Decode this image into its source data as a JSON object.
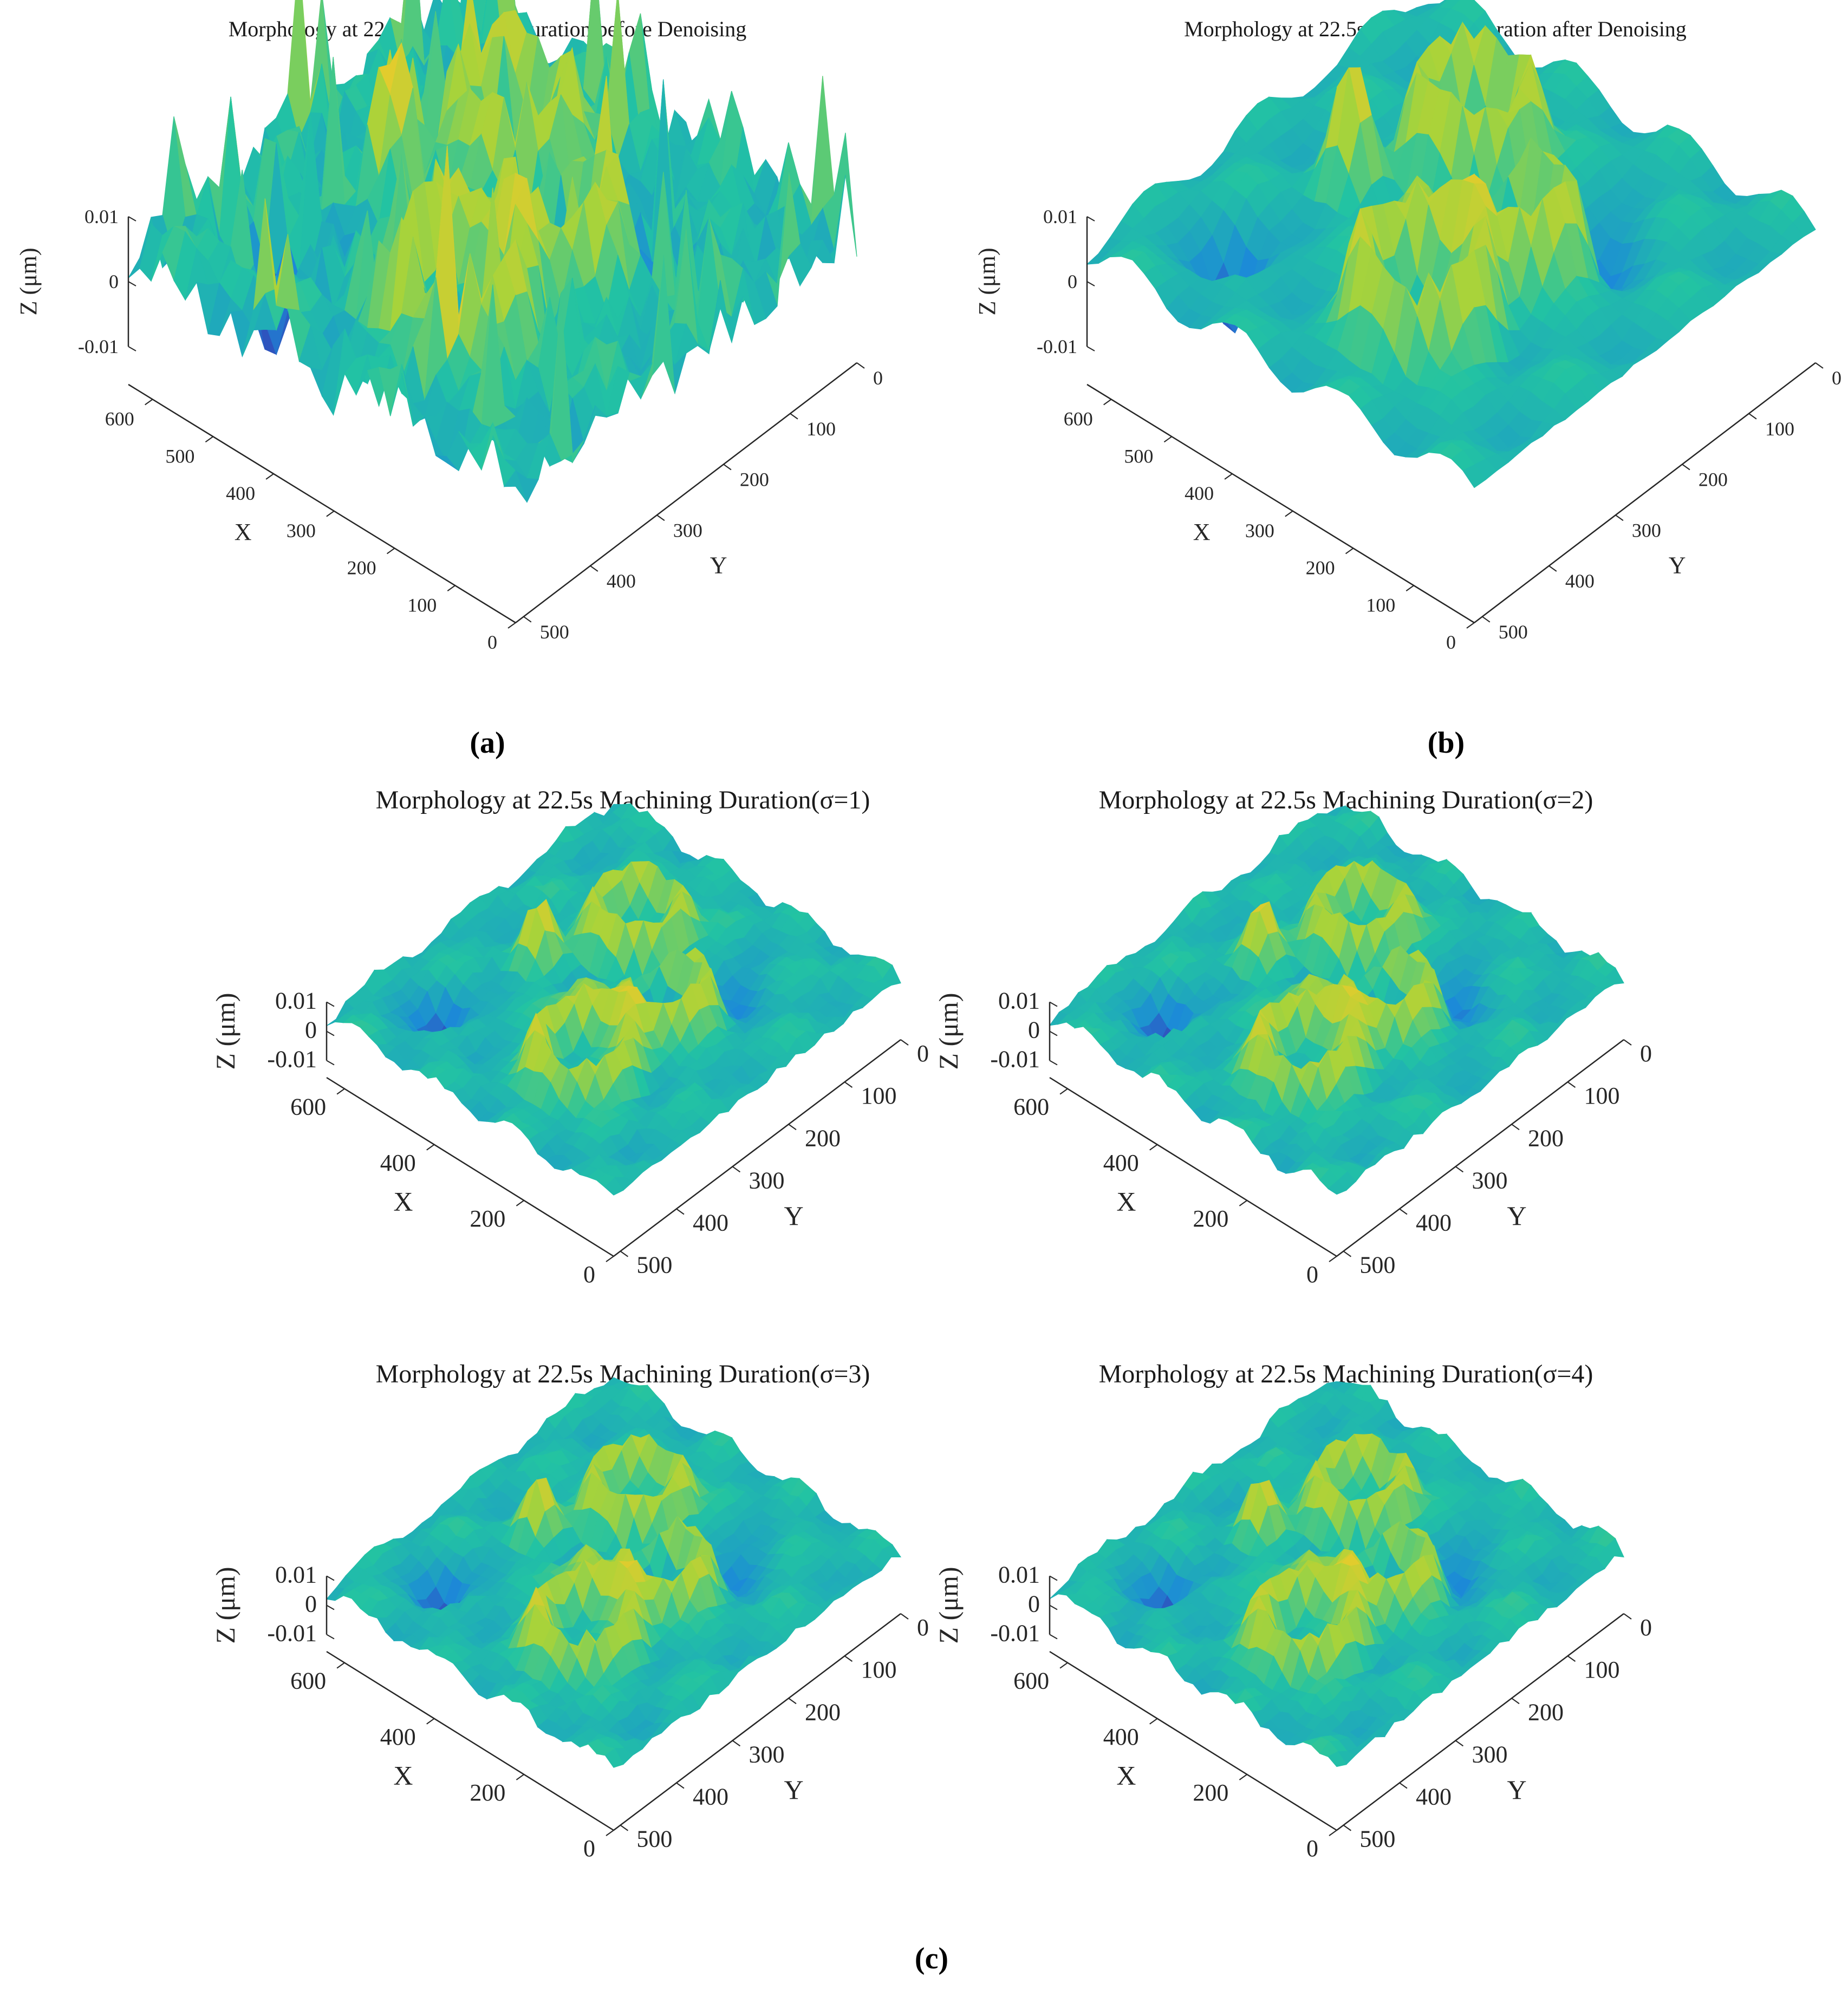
{
  "figure": {
    "captions": {
      "a": "(a)",
      "b": "(b)",
      "c": "(c)"
    }
  },
  "colormap": {
    "name": "parula",
    "low": "#3e26a8",
    "mid_low": "#1c8ad8",
    "mid": "#22c3a3",
    "mid_high": "#a8d33a",
    "high": "#f9c928"
  },
  "chart_data": [
    {
      "id": "a",
      "type": "surface",
      "title": "Morphology at 22.5s Machining Duration before Denoising",
      "xlabel": "X",
      "ylabel": "Y",
      "zlabel": "Z (μm)",
      "xticks": [
        "0",
        "100",
        "200",
        "300",
        "400",
        "500",
        "600"
      ],
      "yticks": [
        "0",
        "100",
        "200",
        "300",
        "400",
        "500"
      ],
      "zticks": [
        "-0.01",
        "0",
        "0.01"
      ],
      "xlim": [
        0,
        640
      ],
      "ylim": [
        0,
        512
      ],
      "zlim": [
        -0.01,
        0.01
      ],
      "noise": "high"
    },
    {
      "id": "b",
      "type": "surface",
      "title": "Morphology at 22.5s Machining Duration after Denoising",
      "xlabel": "X",
      "ylabel": "Y",
      "zlabel": "Z (μm)",
      "xticks": [
        "0",
        "100",
        "200",
        "300",
        "400",
        "500",
        "600"
      ],
      "yticks": [
        "0",
        "100",
        "200",
        "300",
        "400",
        "500"
      ],
      "zticks": [
        "-0.01",
        "0",
        "0.01"
      ],
      "xlim": [
        0,
        640
      ],
      "ylim": [
        0,
        512
      ],
      "zlim": [
        -0.01,
        0.01
      ],
      "noise": "none"
    },
    {
      "id": "c1",
      "type": "surface",
      "title": "Morphology at 22.5s Machining Duration(σ=1)",
      "xlabel": "X",
      "ylabel": "Y",
      "zlabel": "Z (μm)",
      "xticks": [
        "0",
        "200",
        "400",
        "600"
      ],
      "yticks": [
        "0",
        "100",
        "200",
        "300",
        "400",
        "500"
      ],
      "zticks": [
        "-0.01",
        "0",
        "0.01"
      ],
      "xlim": [
        0,
        640
      ],
      "ylim": [
        0,
        512
      ],
      "zlim": [
        -0.01,
        0.01
      ],
      "noise": "low"
    },
    {
      "id": "c2",
      "type": "surface",
      "title": "Morphology at 22.5s Machining Duration(σ=2)",
      "xlabel": "X",
      "ylabel": "Y",
      "zlabel": "Z (μm)",
      "xticks": [
        "0",
        "200",
        "400",
        "600"
      ],
      "yticks": [
        "0",
        "100",
        "200",
        "300",
        "400",
        "500"
      ],
      "zticks": [
        "-0.01",
        "0",
        "0.01"
      ],
      "xlim": [
        0,
        640
      ],
      "ylim": [
        0,
        512
      ],
      "zlim": [
        -0.01,
        0.01
      ],
      "noise": "low"
    },
    {
      "id": "c3",
      "type": "surface",
      "title": "Morphology at 22.5s Machining Duration(σ=3)",
      "xlabel": "X",
      "ylabel": "Y",
      "zlabel": "Z (μm)",
      "xticks": [
        "0",
        "200",
        "400",
        "600"
      ],
      "yticks": [
        "0",
        "100",
        "200",
        "300",
        "400",
        "500"
      ],
      "zticks": [
        "-0.01",
        "0",
        "0.01"
      ],
      "xlim": [
        0,
        640
      ],
      "ylim": [
        0,
        512
      ],
      "zlim": [
        -0.01,
        0.01
      ],
      "noise": "low"
    },
    {
      "id": "c4",
      "type": "surface",
      "title": "Morphology at 22.5s Machining Duration(σ=4)",
      "xlabel": "X",
      "ylabel": "Y",
      "zlabel": "Z (μm)",
      "xticks": [
        "0",
        "200",
        "400",
        "600"
      ],
      "yticks": [
        "0",
        "100",
        "200",
        "300",
        "400",
        "500"
      ],
      "zticks": [
        "-0.01",
        "0",
        "0.01"
      ],
      "xlim": [
        0,
        640
      ],
      "ylim": [
        0,
        512
      ],
      "zlim": [
        -0.01,
        0.01
      ],
      "noise": "low"
    }
  ]
}
